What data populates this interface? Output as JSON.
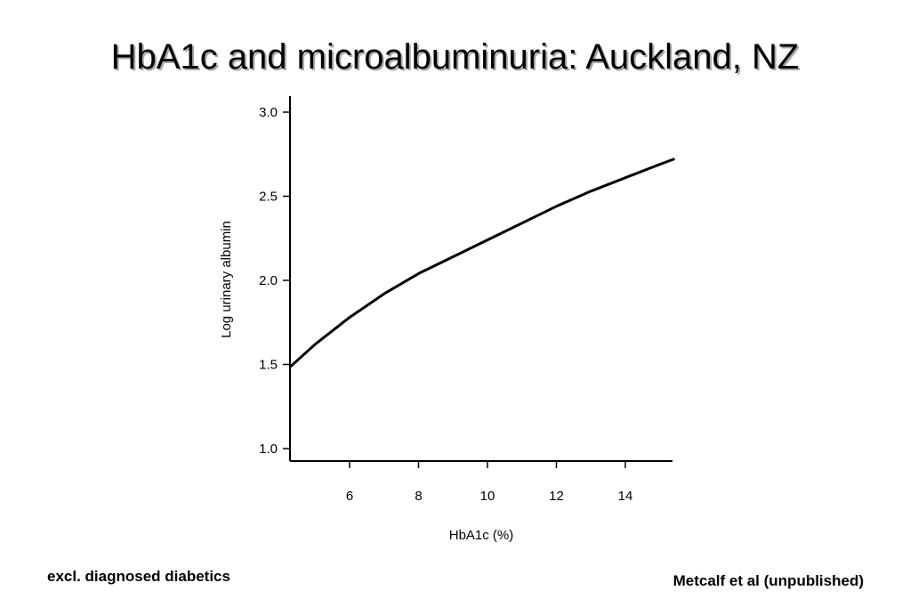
{
  "slide": {
    "title": "HbA1c and microalbuminuria: Auckland, NZ",
    "footnote_left": "excl. diagnosed diabetics",
    "footnote_right": "Metcalf et al (unpublished)"
  },
  "chart_data": {
    "type": "line",
    "xlabel": "HbA1c (%)",
    "ylabel": "Log urinary albumin",
    "xlim": [
      4.3,
      15.4
    ],
    "ylim": [
      0.95,
      3.05
    ],
    "xticks": [
      6,
      8,
      10,
      12,
      14
    ],
    "yticks": [
      1.0,
      1.5,
      2.0,
      2.5,
      3.0
    ],
    "ytick_labels": [
      "1.0",
      "1.5",
      "2.0",
      "2.5",
      "3.0"
    ],
    "grid": false,
    "series": [
      {
        "x": [
          4.3,
          5.0,
          6.0,
          7.0,
          8.0,
          9.0,
          10.0,
          11.0,
          12.0,
          13.0,
          14.0,
          15.0,
          15.4
        ],
        "y": [
          1.49,
          1.62,
          1.78,
          1.92,
          2.04,
          2.14,
          2.24,
          2.34,
          2.44,
          2.53,
          2.61,
          2.69,
          2.72
        ]
      }
    ],
    "line_color": "#000000"
  }
}
